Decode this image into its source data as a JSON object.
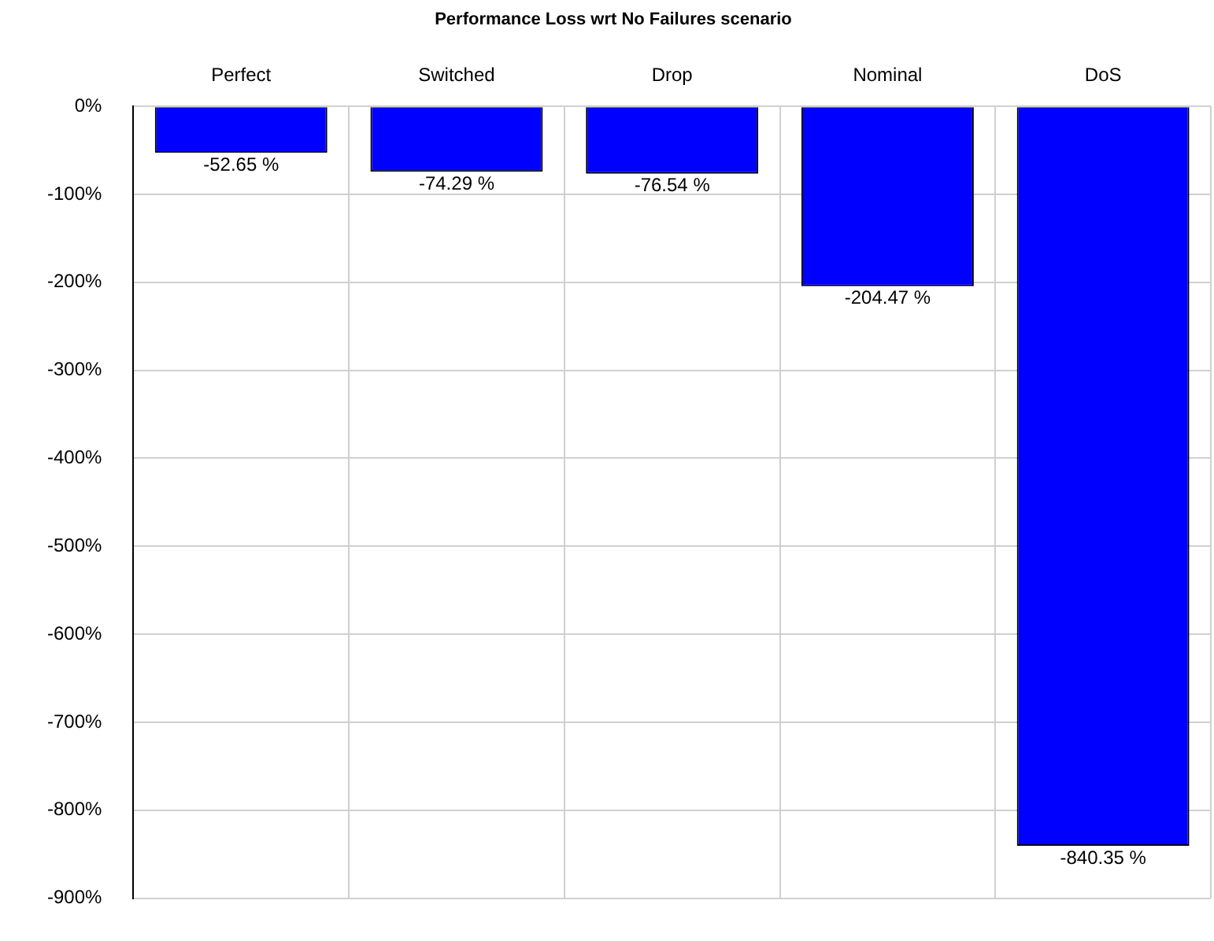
{
  "chart_data": {
    "type": "bar",
    "title": "Performance Loss wrt No Failures scenario",
    "categories": [
      "Perfect",
      "Switched",
      "Drop",
      "Nominal",
      "DoS"
    ],
    "values": [
      -52.65,
      -74.29,
      -76.54,
      -204.47,
      -840.35
    ],
    "value_labels": [
      "-52.65 %",
      "-74.29 %",
      "-76.54 %",
      "-204.47 %",
      "-840.35 %"
    ],
    "color": "#0000ff",
    "ylim": [
      -900,
      0
    ],
    "yticks": [
      {
        "value": -900,
        "label": "-900%"
      },
      {
        "value": -800,
        "label": "-800%"
      },
      {
        "value": -700,
        "label": "-700%"
      },
      {
        "value": -600,
        "label": "-600%"
      },
      {
        "value": -500,
        "label": "-500%"
      },
      {
        "value": -400,
        "label": "-400%"
      },
      {
        "value": -300,
        "label": "-300%"
      },
      {
        "value": -200,
        "label": "-200%"
      },
      {
        "value": -100,
        "label": "-100%"
      },
      {
        "value": 0,
        "label": "0%"
      }
    ],
    "grid": true,
    "legend": false
  }
}
